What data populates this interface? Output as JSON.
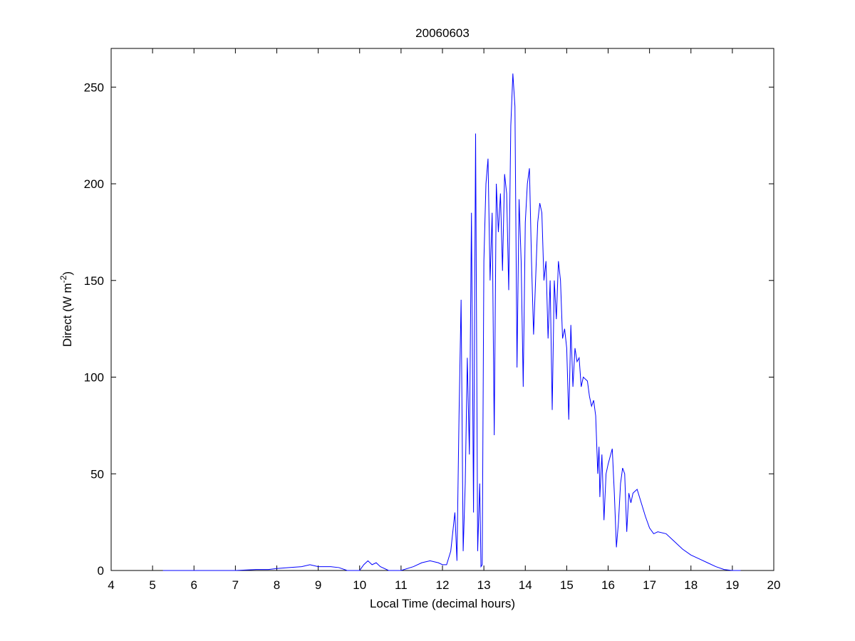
{
  "chart_data": {
    "type": "line",
    "title": "20060603",
    "xlabel": "Local Time (decimal hours)",
    "ylabel_parts": [
      "Direct (W m",
      "-2",
      ")"
    ],
    "xlim": [
      4,
      20
    ],
    "ylim": [
      0,
      270
    ],
    "xticks": [
      4,
      5,
      6,
      7,
      8,
      9,
      10,
      11,
      12,
      13,
      14,
      15,
      16,
      17,
      18,
      19,
      20
    ],
    "yticks": [
      0,
      50,
      100,
      150,
      200,
      250
    ],
    "grid": false,
    "series": [
      {
        "color": "#0000ff",
        "x": [
          5.25,
          6,
          7,
          7.5,
          7.8,
          8,
          8.3,
          8.6,
          8.8,
          9,
          9.3,
          9.5,
          9.7,
          10,
          10.1,
          10.2,
          10.3,
          10.4,
          10.5,
          10.7,
          11,
          11.3,
          11.5,
          11.7,
          11.9,
          12,
          12.1,
          12.2,
          12.3,
          12.35,
          12.4,
          12.45,
          12.5,
          12.55,
          12.6,
          12.65,
          12.7,
          12.75,
          12.8,
          12.85,
          12.9,
          12.93,
          12.96,
          13,
          13.05,
          13.1,
          13.15,
          13.2,
          13.25,
          13.3,
          13.35,
          13.4,
          13.45,
          13.5,
          13.55,
          13.6,
          13.65,
          13.7,
          13.75,
          13.8,
          13.85,
          13.9,
          13.95,
          14,
          14.05,
          14.1,
          14.15,
          14.2,
          14.3,
          14.35,
          14.4,
          14.45,
          14.5,
          14.55,
          14.6,
          14.65,
          14.7,
          14.75,
          14.8,
          14.85,
          14.9,
          14.95,
          15,
          15.05,
          15.1,
          15.15,
          15.2,
          15.25,
          15.3,
          15.35,
          15.4,
          15.5,
          15.55,
          15.6,
          15.65,
          15.7,
          15.75,
          15.78,
          15.8,
          15.85,
          15.9,
          15.95,
          16,
          16.1,
          16.15,
          16.2,
          16.25,
          16.3,
          16.35,
          16.4,
          16.45,
          16.5,
          16.55,
          16.6,
          16.7,
          16.8,
          16.9,
          17,
          17.1,
          17.2,
          17.4,
          17.6,
          17.8,
          18,
          18.2,
          18.4,
          18.6,
          18.8,
          19,
          19.2
        ],
        "values": [
          0,
          0,
          0,
          0.5,
          0.5,
          1,
          1.5,
          2,
          3,
          2,
          2,
          1.5,
          0,
          0,
          3,
          5,
          3,
          4,
          2,
          0,
          0,
          2,
          4,
          5,
          4,
          3,
          3,
          10,
          30,
          5,
          80,
          140,
          10,
          45,
          110,
          60,
          185,
          30,
          226,
          10,
          45,
          2,
          3,
          160,
          200,
          213,
          150,
          185,
          70,
          200,
          175,
          195,
          155,
          205,
          195,
          145,
          230,
          257,
          240,
          105,
          192,
          160,
          95,
          180,
          200,
          208,
          160,
          122,
          180,
          190,
          185,
          150,
          160,
          120,
          150,
          83,
          150,
          130,
          160,
          150,
          120,
          125,
          115,
          78,
          127,
          95,
          115,
          108,
          110,
          95,
          100,
          98,
          90,
          85,
          88,
          80,
          50,
          64,
          38,
          60,
          26,
          50,
          55,
          63,
          40,
          12,
          25,
          45,
          53,
          50,
          20,
          40,
          35,
          40,
          42,
          35,
          28,
          22,
          19,
          20,
          19,
          15,
          11,
          8,
          6,
          4,
          2,
          0.5,
          0,
          0
        ]
      }
    ]
  }
}
